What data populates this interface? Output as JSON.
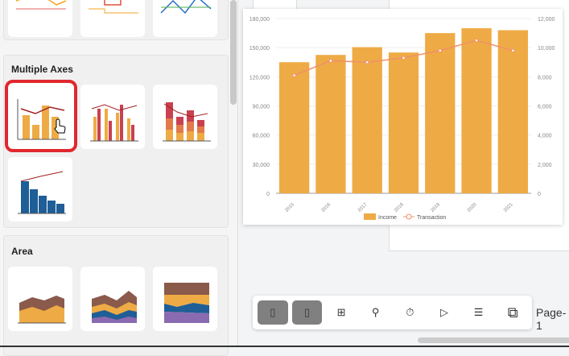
{
  "sidebar": {
    "groups": [
      {
        "title": "Multiple Axes"
      },
      {
        "title": "Area"
      }
    ]
  },
  "toolbar": {
    "page_label": "Page-1"
  },
  "chart_data": {
    "type": "bar",
    "categories": [
      "2015",
      "2016",
      "2017",
      "2018",
      "2019",
      "2020",
      "2021"
    ],
    "series": [
      {
        "name": "Income",
        "type": "bar",
        "axis": "left",
        "color": "#eeab45",
        "values": [
          135000,
          142500,
          150500,
          145000,
          165000,
          170000,
          168000
        ]
      },
      {
        "name": "Transaction",
        "type": "line",
        "axis": "right",
        "color": "#f0906a",
        "values": [
          8100,
          9100,
          9000,
          9300,
          9800,
          10500,
          9800
        ]
      }
    ],
    "yleft": {
      "ticks": [
        "0",
        "30,000",
        "60,000",
        "90,000",
        "120,000",
        "150,000",
        "180,000"
      ],
      "range": [
        0,
        180000
      ]
    },
    "yright": {
      "ticks": [
        "0",
        "2,000",
        "4,000",
        "6,000",
        "8,000",
        "10,000",
        "12,000"
      ],
      "range": [
        0,
        12000
      ]
    },
    "legend": "bottom"
  }
}
